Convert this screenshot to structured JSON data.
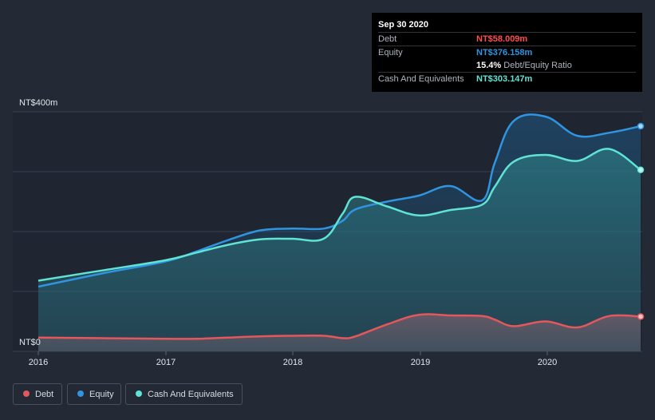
{
  "tooltip": {
    "date": "Sep 30 2020",
    "debt_label": "Debt",
    "debt_value": "NT$58.009m",
    "equity_label": "Equity",
    "equity_value": "NT$376.158m",
    "ratio_value": "15.4%",
    "ratio_label": "Debt/Equity Ratio",
    "cash_label": "Cash And Equivalents",
    "cash_value": "NT$303.147m"
  },
  "legend": [
    {
      "label": "Debt",
      "color": "#e5575c"
    },
    {
      "label": "Equity",
      "color": "#2f95e0"
    },
    {
      "label": "Cash And Equivalents",
      "color": "#5fe3d4"
    }
  ],
  "chart_data": {
    "type": "area",
    "x_tick_labels": [
      "2016",
      "2017",
      "2018",
      "2019",
      "2020"
    ],
    "y_tick_labels": [
      "NT$0",
      "NT$400m"
    ],
    "ylim": [
      0,
      400
    ],
    "xlim": [
      2016.0,
      2020.75
    ],
    "grid": true,
    "legend_position": "bottom-left",
    "series": [
      {
        "name": "Equity",
        "color": "#2f95e0",
        "x": [
          2016.0,
          2016.5,
          2017.0,
          2017.25,
          2017.5,
          2017.75,
          2018.0,
          2018.25,
          2018.4,
          2018.5,
          2018.75,
          2019.0,
          2019.25,
          2019.5,
          2019.6,
          2019.75,
          2020.0,
          2020.25,
          2020.5,
          2020.75
        ],
        "y": [
          108,
          130,
          150,
          167,
          186,
          202,
          205,
          205,
          218,
          237,
          250,
          260,
          276,
          252,
          315,
          385,
          392,
          360,
          365,
          376
        ]
      },
      {
        "name": "Cash And Equivalents",
        "color": "#5fe3d4",
        "x": [
          2016.0,
          2016.5,
          2017.0,
          2017.25,
          2017.5,
          2017.75,
          2018.0,
          2018.25,
          2018.4,
          2018.5,
          2018.75,
          2019.0,
          2019.25,
          2019.5,
          2019.6,
          2019.75,
          2020.0,
          2020.25,
          2020.5,
          2020.75
        ],
        "y": [
          118,
          135,
          152,
          165,
          178,
          187,
          188,
          188,
          230,
          258,
          242,
          227,
          236,
          245,
          275,
          317,
          328,
          318,
          338,
          303
        ]
      },
      {
        "name": "Debt",
        "color": "#e5575c",
        "x": [
          2016.0,
          2016.5,
          2017.0,
          2017.25,
          2017.5,
          2017.75,
          2018.0,
          2018.25,
          2018.4,
          2018.5,
          2018.75,
          2019.0,
          2019.25,
          2019.5,
          2019.6,
          2019.75,
          2020.0,
          2020.25,
          2020.5,
          2020.75
        ],
        "y": [
          23,
          22,
          21,
          21,
          23,
          25,
          26,
          26,
          22,
          25,
          45,
          61,
          60,
          59,
          53,
          42,
          50,
          40,
          59,
          58
        ]
      }
    ]
  }
}
